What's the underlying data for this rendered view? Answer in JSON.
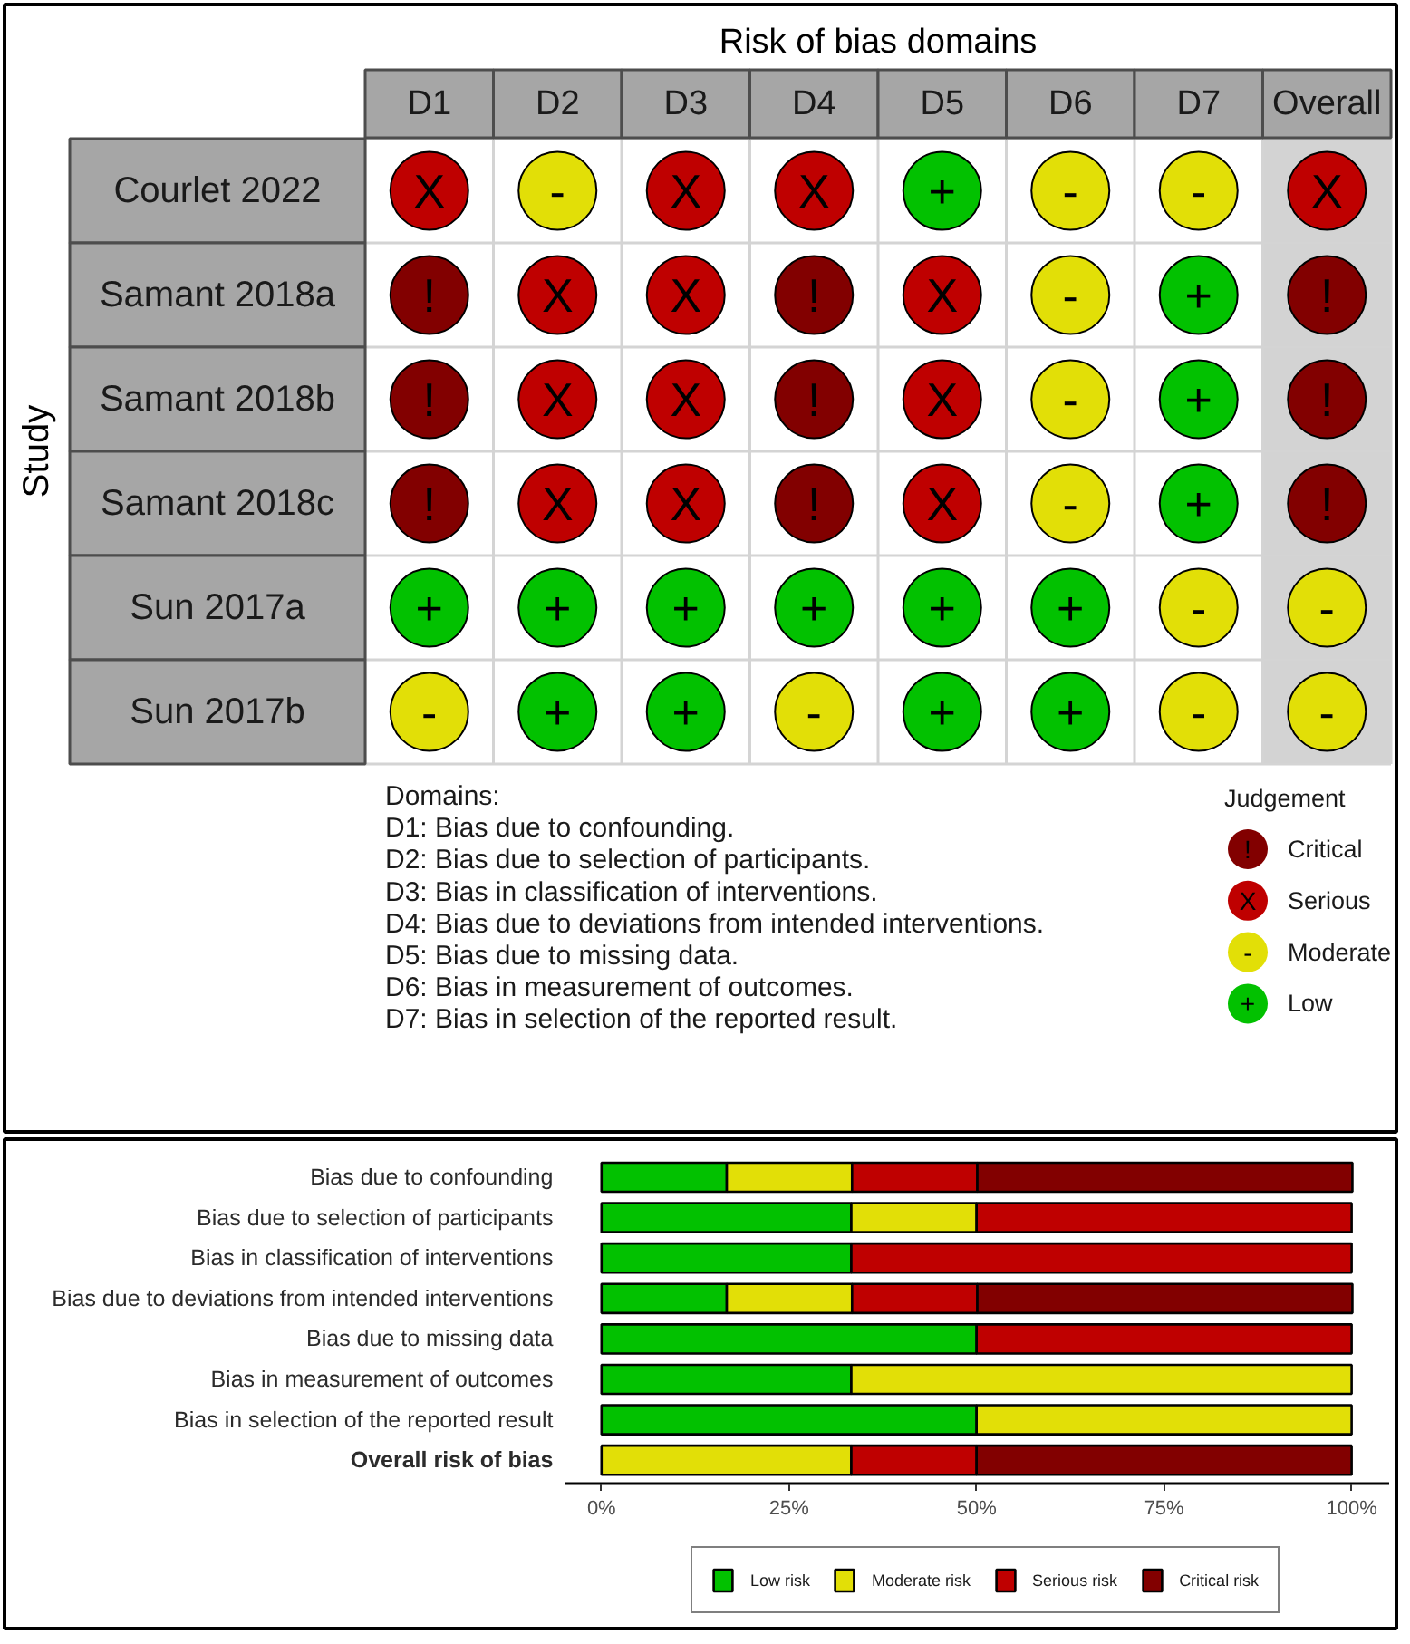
{
  "chart_data": [
    {
      "type": "heatmap",
      "title": "Risk of bias domains",
      "ylabel": "Study",
      "categories": [
        "D1",
        "D2",
        "D3",
        "D4",
        "D5",
        "D6",
        "D7",
        "Overall"
      ],
      "y_categories": [
        "Courlet 2022",
        "Samant 2018a",
        "Samant 2018b",
        "Samant 2018c",
        "Sun 2017a",
        "Sun 2017b"
      ],
      "cells": [
        [
          "X",
          "-",
          "X",
          "X",
          "+",
          "-",
          "-",
          "X"
        ],
        [
          "!",
          "X",
          "X",
          "!",
          "X",
          "-",
          "+",
          "!"
        ],
        [
          "!",
          "X",
          "X",
          "!",
          "X",
          "-",
          "+",
          "!"
        ],
        [
          "!",
          "X",
          "X",
          "!",
          "X",
          "-",
          "+",
          "!"
        ],
        [
          "+",
          "+",
          "+",
          "+",
          "+",
          "+",
          "-",
          "-"
        ],
        [
          "-",
          "+",
          "+",
          "-",
          "+",
          "+",
          "-",
          "-"
        ]
      ],
      "colors": [
        [
          "#bf0000",
          "#e2df07",
          "#bf0000",
          "#bf0000",
          "#02c100",
          "#e2df07",
          "#e2df07",
          "#bf0000"
        ],
        [
          "#820000",
          "#bf0000",
          "#bf0000",
          "#820000",
          "#bf0000",
          "#e2df07",
          "#02c100",
          "#820000"
        ],
        [
          "#820000",
          "#bf0000",
          "#bf0000",
          "#820000",
          "#bf0000",
          "#e2df07",
          "#02c100",
          "#820000"
        ],
        [
          "#820000",
          "#bf0000",
          "#bf0000",
          "#820000",
          "#bf0000",
          "#e2df07",
          "#02c100",
          "#820000"
        ],
        [
          "#02c100",
          "#02c100",
          "#02c100",
          "#02c100",
          "#02c100",
          "#02c100",
          "#e2df07",
          "#e2df07"
        ],
        [
          "#e2df07",
          "#02c100",
          "#02c100",
          "#e2df07",
          "#02c100",
          "#02c100",
          "#e2df07",
          "#e2df07"
        ]
      ],
      "clabel": "Judgement",
      "cticks": [
        {
          "value": "!",
          "label": "Critical"
        },
        {
          "value": "X",
          "label": "Serious"
        },
        {
          "value": "-",
          "label": "Moderate"
        },
        {
          "value": "+",
          "label": "Low"
        }
      ],
      "grid": true,
      "bands": [
        {
          "axis": "x",
          "from": "Overall",
          "to": "Overall",
          "color": "#d3d3d3"
        }
      ],
      "annotations": [
        "Domains:",
        "D1: Bias due to confounding.",
        "D2: Bias due to selection of participants.",
        "D3: Bias in classification of interventions.",
        "D4: Bias due to deviations from intended interventions.",
        "D5: Bias due to missing data.",
        "D6: Bias in measurement of outcomes.",
        "D7: Bias in selection of the reported result."
      ]
    },
    {
      "type": "bar",
      "orientation": "horizontal",
      "stacked": true,
      "categories": [
        "Bias due to confounding",
        "Bias due to selection of participants",
        "Bias in classification of interventions",
        "Bias due to deviations from intended interventions",
        "Bias due to missing data",
        "Bias in measurement of outcomes",
        "Bias in selection of the reported result",
        "Overall risk of bias"
      ],
      "series": [
        {
          "name": "Low risk",
          "color": "#02c100",
          "values": [
            16.7,
            33.3,
            33.3,
            16.7,
            50,
            33.3,
            50,
            0
          ]
        },
        {
          "name": "Moderate risk",
          "color": "#e2df07",
          "values": [
            16.7,
            16.7,
            0,
            16.7,
            0,
            66.7,
            50,
            33.3
          ]
        },
        {
          "name": "Serious risk",
          "color": "#bf0000",
          "values": [
            16.7,
            50,
            66.7,
            16.7,
            50,
            0,
            0,
            16.7
          ]
        },
        {
          "name": "Critical risk",
          "color": "#820000",
          "values": [
            50,
            0,
            0,
            50,
            0,
            0,
            0,
            50
          ]
        }
      ],
      "xlim": [
        -5,
        105
      ],
      "xticks": [
        {
          "value": 0,
          "label": "0%"
        },
        {
          "value": 25,
          "label": "25%"
        },
        {
          "value": 50,
          "label": "50%"
        },
        {
          "value": 75,
          "label": "75%"
        },
        {
          "value": 100,
          "label": "100%"
        }
      ],
      "legend": "bottom"
    }
  ]
}
